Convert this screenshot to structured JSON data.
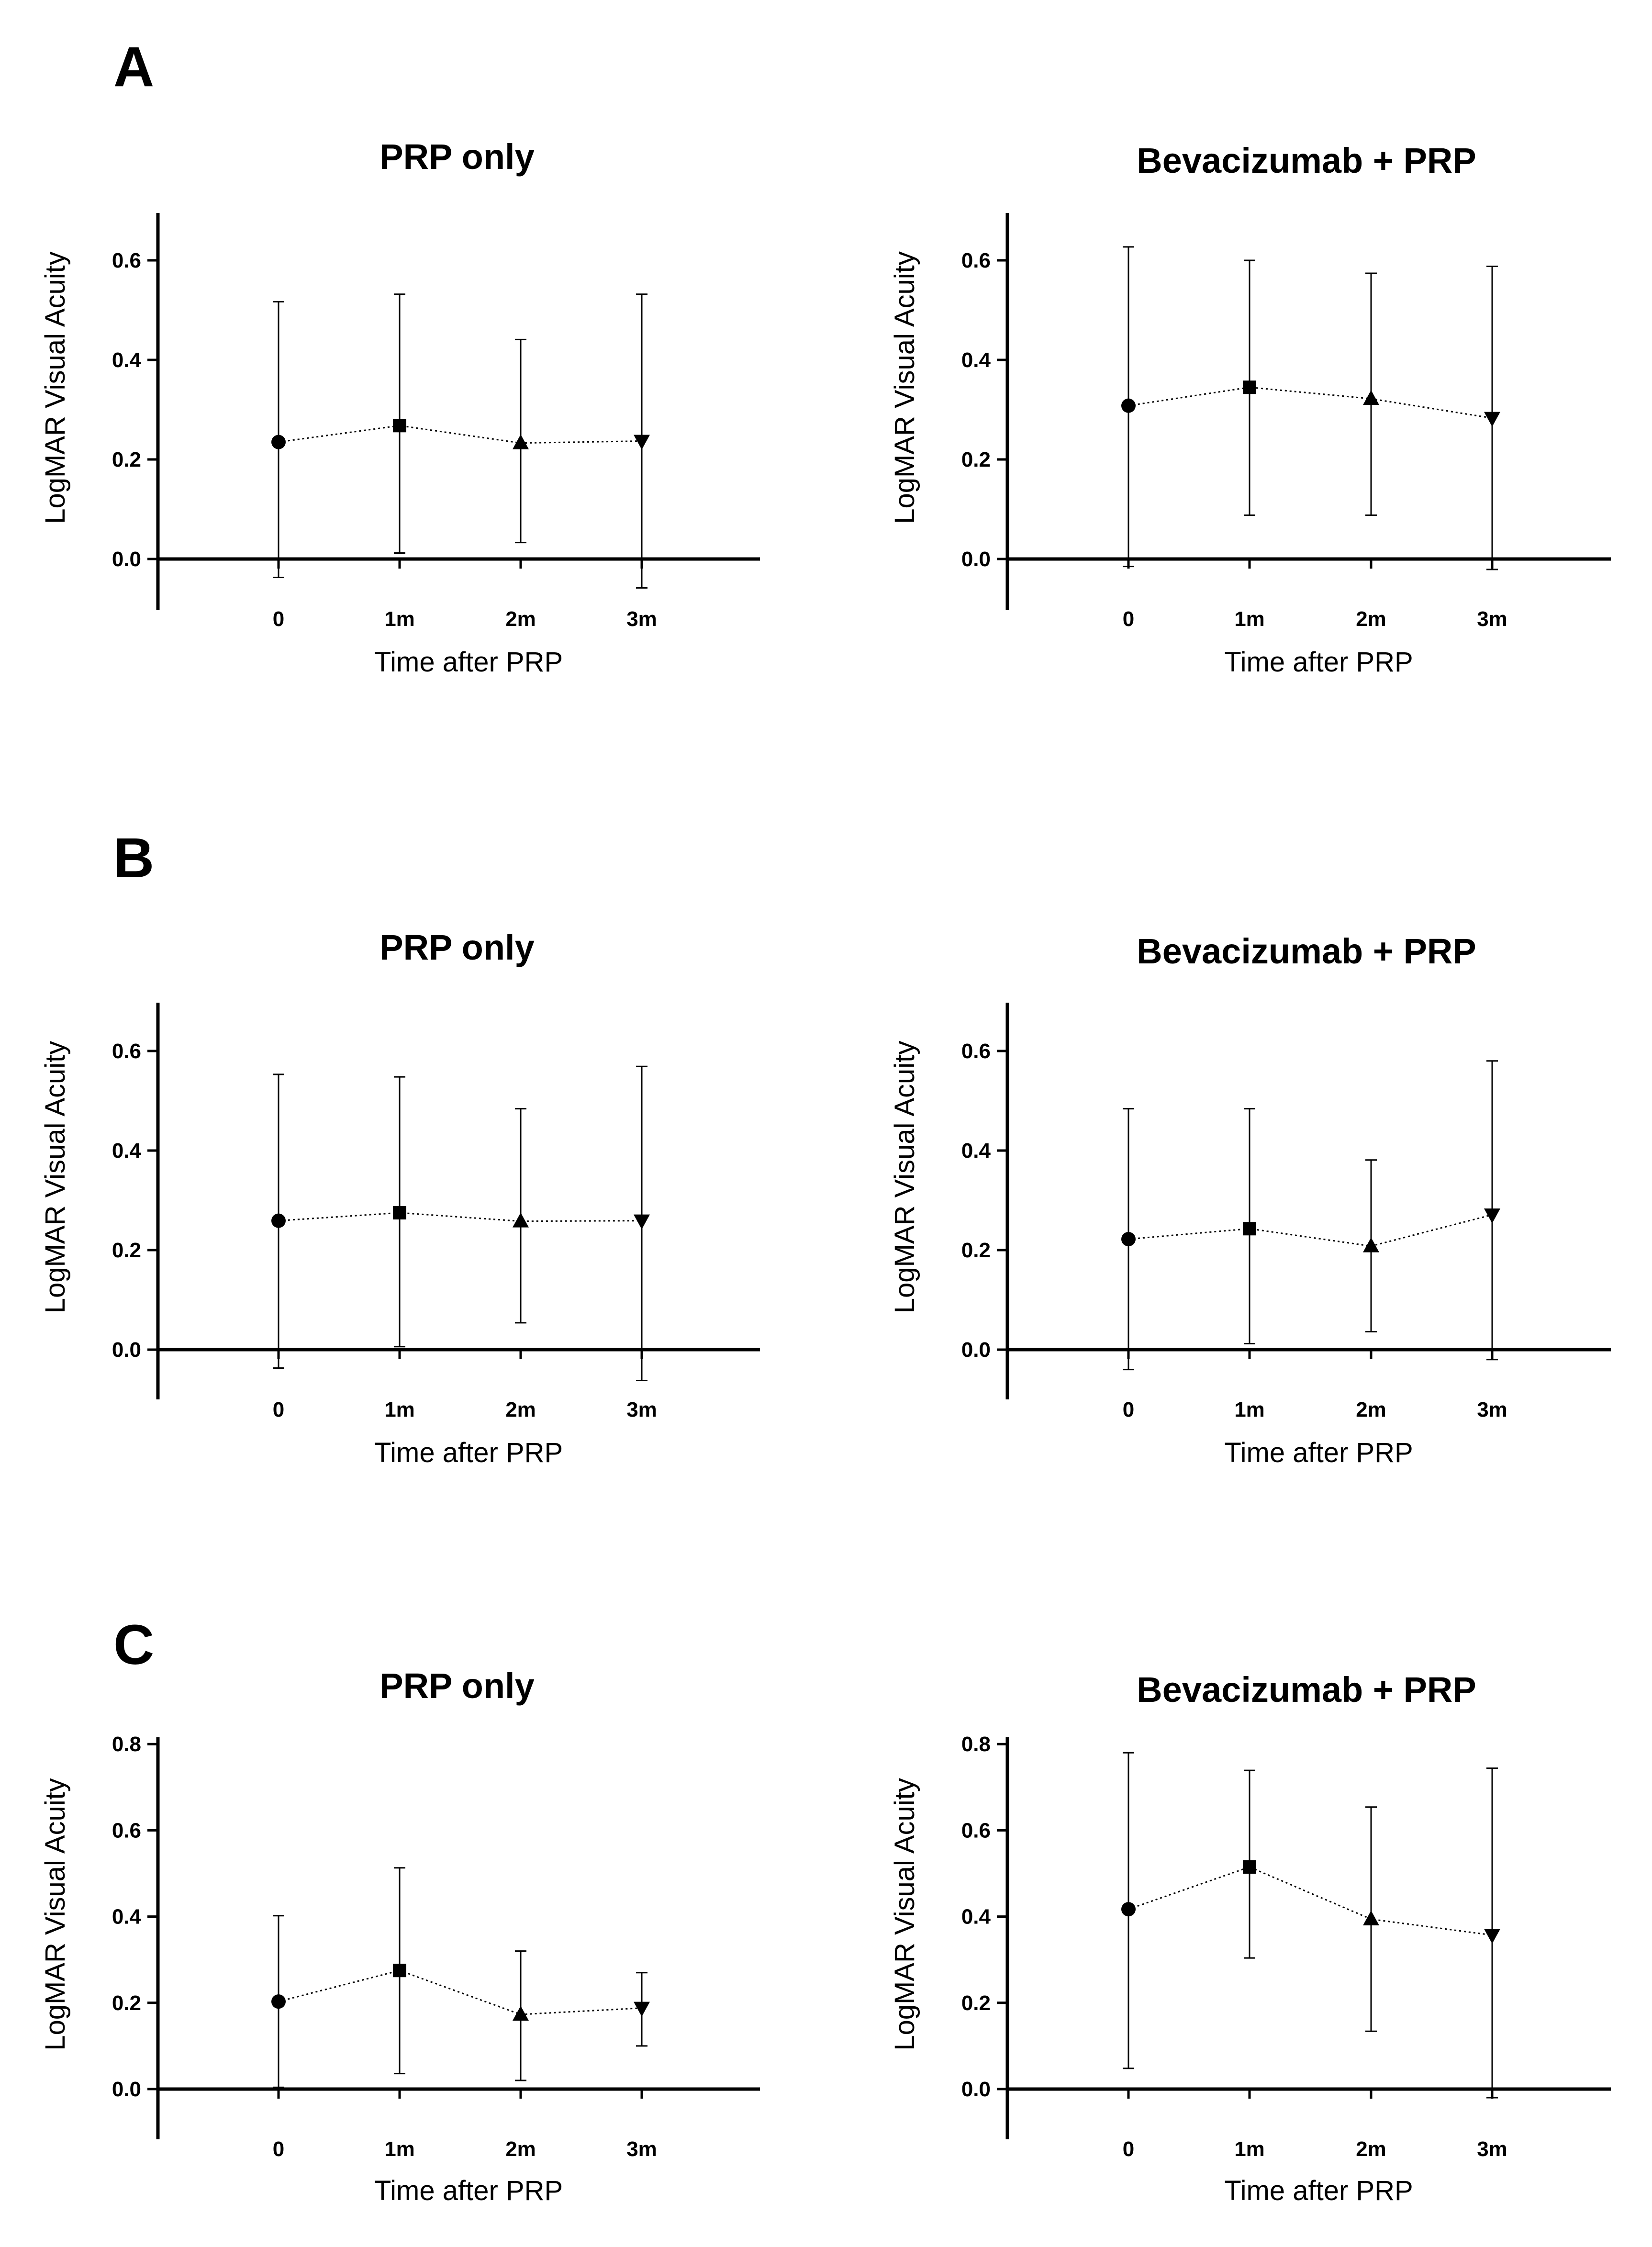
{
  "figure": {
    "panels": [
      {
        "label": "A"
      },
      {
        "label": "B"
      },
      {
        "label": "C"
      }
    ]
  },
  "chart_data": [
    {
      "panel": "A",
      "type": "scatter",
      "title": "PRP only",
      "xlabel": "Time after PRP",
      "ylabel": "LogMAR Visual Acuity",
      "categories": [
        "0",
        "1m",
        "2m",
        "3m"
      ],
      "markers": [
        "circle",
        "square",
        "triangle-up",
        "triangle-down"
      ],
      "values": [
        0.235,
        0.268,
        0.233,
        0.237
      ],
      "error_low": [
        -0.037,
        0.012,
        0.033,
        -0.058
      ],
      "error_high": [
        0.517,
        0.532,
        0.441,
        0.532
      ],
      "yticks": [
        "0.0",
        "0.2",
        "0.4",
        "0.6"
      ],
      "ylim": [
        -0.1,
        0.69
      ],
      "connector": "dotted"
    },
    {
      "panel": "A",
      "type": "scatter",
      "title": "Bevacizumab + PRP",
      "xlabel": "Time after PRP",
      "ylabel": "LogMAR Visual Acuity",
      "categories": [
        "0",
        "1m",
        "2m",
        "3m"
      ],
      "markers": [
        "circle",
        "square",
        "triangle-up",
        "triangle-down"
      ],
      "values": [
        0.308,
        0.345,
        0.322,
        0.283
      ],
      "error_low": [
        -0.015,
        0.088,
        0.088,
        -0.021
      ],
      "error_high": [
        0.627,
        0.6,
        0.574,
        0.588
      ],
      "yticks": [
        "0.0",
        "0.2",
        "0.4",
        "0.6"
      ],
      "ylim": [
        -0.1,
        0.69
      ],
      "connector": "dotted"
    },
    {
      "panel": "B",
      "type": "scatter",
      "title": "PRP only",
      "xlabel": "Time after PRP",
      "ylabel": "LogMAR Visual Acuity",
      "categories": [
        "0",
        "1m",
        "2m",
        "3m"
      ],
      "markers": [
        "circle",
        "square",
        "triangle-up",
        "triangle-down"
      ],
      "values": [
        0.259,
        0.275,
        0.258,
        0.259
      ],
      "error_low": [
        -0.037,
        0.006,
        0.054,
        -0.062
      ],
      "error_high": [
        0.553,
        0.548,
        0.484,
        0.569
      ],
      "yticks": [
        "0.0",
        "0.2",
        "0.4",
        "0.6"
      ],
      "ylim": [
        -0.1,
        0.69
      ],
      "connector": "dotted"
    },
    {
      "panel": "B",
      "type": "scatter",
      "title": "Bevacizumab + PRP",
      "xlabel": "Time after PRP",
      "ylabel": "LogMAR Visual Acuity",
      "categories": [
        "0",
        "1m",
        "2m",
        "3m"
      ],
      "markers": [
        "circle",
        "square",
        "triangle-up",
        "triangle-down"
      ],
      "values": [
        0.222,
        0.243,
        0.208,
        0.271
      ],
      "error_low": [
        -0.04,
        0.012,
        0.036,
        -0.02
      ],
      "error_high": [
        0.484,
        0.484,
        0.381,
        0.58
      ],
      "yticks": [
        "0.0",
        "0.2",
        "0.4",
        "0.6"
      ],
      "ylim": [
        -0.1,
        0.69
      ],
      "connector": "dotted"
    },
    {
      "panel": "C",
      "type": "scatter",
      "title": "PRP only",
      "xlabel": "Time after PRP",
      "ylabel": "LogMAR Visual Acuity",
      "categories": [
        "0",
        "1m",
        "2m",
        "3m"
      ],
      "markers": [
        "circle",
        "square",
        "triangle-up",
        "triangle-down"
      ],
      "values": [
        0.203,
        0.275,
        0.173,
        0.188
      ],
      "error_low": [
        0.004,
        0.036,
        0.02,
        0.1
      ],
      "error_high": [
        0.402,
        0.513,
        0.32,
        0.27
      ],
      "yticks": [
        "0.0",
        "0.2",
        "0.4",
        "0.6",
        "0.8"
      ],
      "ylim": [
        -0.12,
        0.8
      ],
      "connector": "dotted"
    },
    {
      "panel": "C",
      "type": "scatter",
      "title": "Bevacizumab + PRP",
      "xlabel": "Time after PRP",
      "ylabel": "LogMAR Visual Acuity",
      "categories": [
        "0",
        "1m",
        "2m",
        "3m"
      ],
      "markers": [
        "circle",
        "square",
        "triangle-up",
        "triangle-down"
      ],
      "values": [
        0.417,
        0.515,
        0.394,
        0.357
      ],
      "error_low": [
        0.048,
        0.304,
        0.134,
        -0.02
      ],
      "error_high": [
        0.78,
        0.739,
        0.654,
        0.744
      ],
      "yticks": [
        "0.0",
        "0.2",
        "0.4",
        "0.6",
        "0.8"
      ],
      "ylim": [
        -0.12,
        0.8
      ],
      "connector": "dotted"
    }
  ]
}
